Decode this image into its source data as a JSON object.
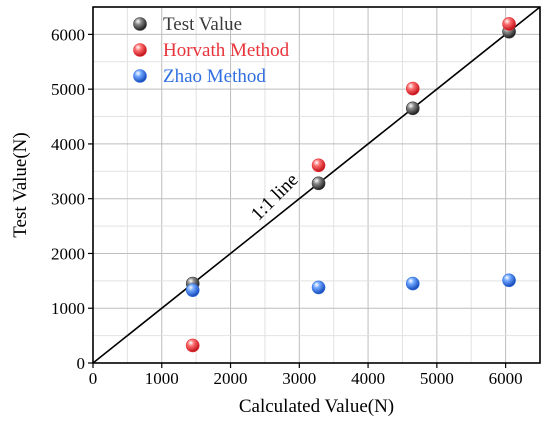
{
  "chart_data": {
    "type": "scatter",
    "xlabel": "Calculated Value(N)",
    "ylabel": "Test Value(N)",
    "xlim": [
      0,
      6500
    ],
    "ylim": [
      0,
      6500
    ],
    "xticks": [
      0,
      1000,
      2000,
      3000,
      4000,
      5000,
      6000
    ],
    "yticks": [
      0,
      1000,
      2000,
      3000,
      4000,
      5000,
      6000
    ],
    "grid": true,
    "legend_position": "top-left",
    "reference_line": {
      "label": "1:1 line",
      "x": [
        0,
        6500
      ],
      "y": [
        0,
        6500
      ]
    },
    "series": [
      {
        "name": "Test Value",
        "color": "#3a3a3a",
        "x": [
          1450,
          3280,
          4650,
          6050
        ],
        "y": [
          1450,
          3280,
          4650,
          6050
        ]
      },
      {
        "name": "Horvath Method",
        "color": "#e8333a",
        "x": [
          1450,
          3280,
          4650,
          6050
        ],
        "y": [
          320,
          3610,
          5010,
          6190
        ]
      },
      {
        "name": "Zhao Method",
        "color": "#2f6fe0",
        "x": [
          1450,
          3280,
          4650,
          6050
        ],
        "y": [
          1330,
          1380,
          1450,
          1510
        ]
      }
    ]
  }
}
